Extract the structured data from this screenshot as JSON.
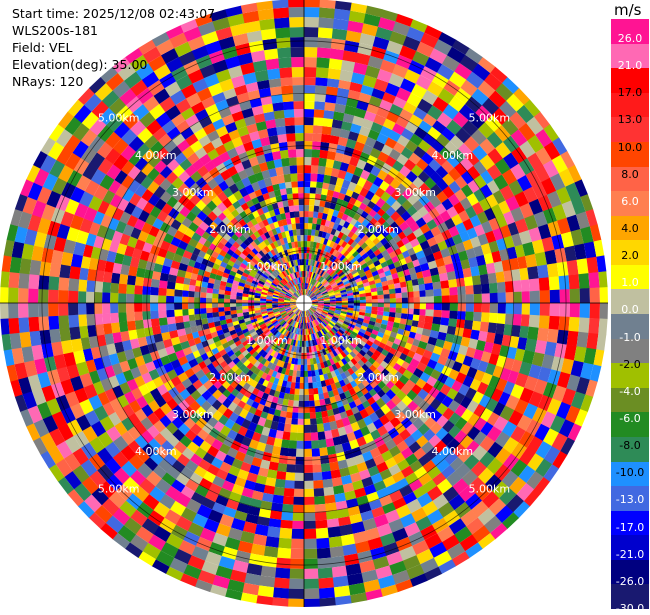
{
  "info": {
    "start_time": "Start time: 2025/12/08 02:43:07",
    "instrument": "WLS200s-181",
    "field": "Field: VEL",
    "elevation": "Elevation(deg): 35.00",
    "nrays": "NRays: 120"
  },
  "chart_data": {
    "type": "heatmap",
    "projection": "polar-ppi",
    "n_rays": 120,
    "range_ring_labels": [
      "1.00km",
      "2.00km",
      "3.00km",
      "4.00km",
      "5.00km"
    ],
    "range_rings_km": [
      1,
      2,
      3,
      4,
      5
    ],
    "max_range_km": 5.8,
    "colorbar": {
      "unit": "m/s",
      "ticks": [
        "26.0",
        "21.0",
        "17.0",
        "13.0",
        "10.0",
        "8.0",
        "6.0",
        "4.0",
        "2.0",
        "1.0",
        "0.0",
        "-1.0",
        "-2.0",
        "-4.0",
        "-6.0",
        "-8.0",
        "-10.0",
        "-13.0",
        "-17.0",
        "-21.0",
        "-26.0",
        "-30.0"
      ],
      "colors": [
        "#ff1493",
        "#ff69b4",
        "#ff0000",
        "#ff1a1a",
        "#ff3333",
        "#ff4500",
        "#ff6347",
        "#ff7f50",
        "#ffa500",
        "#ffd700",
        "#ffff00",
        "#c0c0a0",
        "#708090",
        "#808080",
        "#a0c000",
        "#6b8e23",
        "#228b22",
        "#2e8b57",
        "#1e90ff",
        "#4169e1",
        "#0000ff",
        "#0000cd",
        "#000080",
        "#191970"
      ]
    }
  }
}
